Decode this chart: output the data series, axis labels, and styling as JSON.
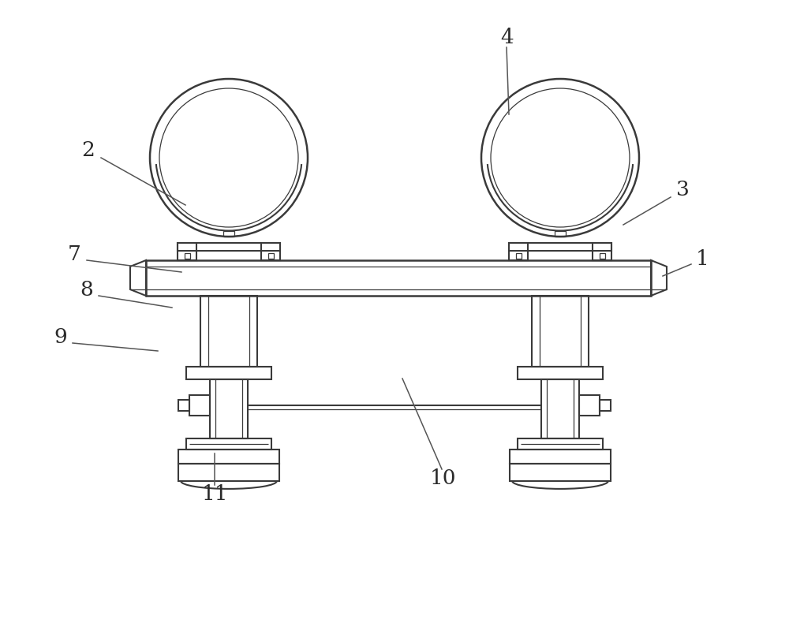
{
  "bg_color": "#ffffff",
  "line_color": "#3a3a3a",
  "lw": 1.5,
  "lw_thin": 0.9,
  "lw_thick": 1.8,
  "figsize": [
    10.0,
    7.9
  ],
  "dpi": 100,
  "label_color": "#2a2a2a",
  "label_fs": 18,
  "label_color_num": "#333333"
}
